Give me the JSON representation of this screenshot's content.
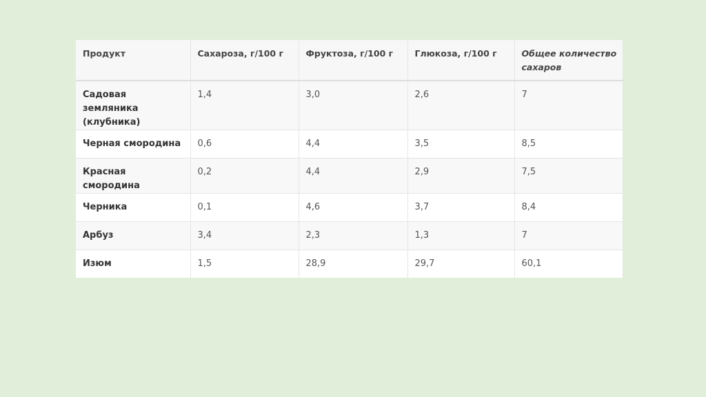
{
  "table": {
    "header": [
      "Продукт",
      "Сахароза, г/100 г",
      "Фруктоза, г/100 г",
      "Глюкоза, г/100 г",
      "Общее количество сахаров"
    ],
    "rows": [
      [
        "Садовая земляника (клубника)",
        "1,4",
        "3,0",
        "2,6",
        "7"
      ],
      [
        "Черная смородина",
        "0,6",
        "4,4",
        "3,5",
        "8,5"
      ],
      [
        "Красная смородина",
        "0,2",
        "4,4",
        "2,9",
        "7,5"
      ],
      [
        "Черника",
        "0,1",
        "4,6",
        "3,7",
        "8,4"
      ],
      [
        "Арбуз",
        "3,4",
        "2,3",
        "1,3",
        "7"
      ],
      [
        "Изюм",
        "1,5",
        "28,9",
        "29,7",
        "60,1"
      ]
    ]
  }
}
